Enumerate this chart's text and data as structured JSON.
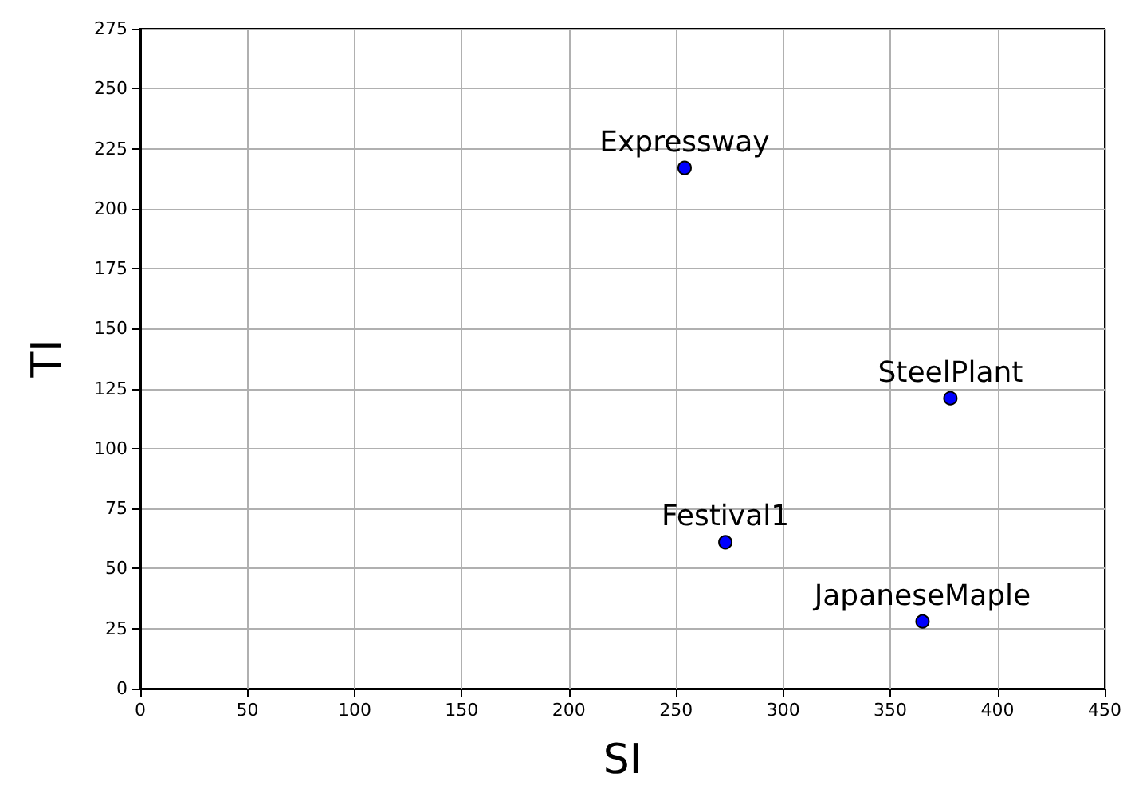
{
  "chart_data": {
    "type": "scatter",
    "xlabel": "SI",
    "ylabel": "TI",
    "x": [
      254,
      378,
      273,
      365
    ],
    "series": [
      {
        "color": "#0000ff",
        "values": [
          217,
          121,
          61,
          28
        ]
      }
    ],
    "annotations": [
      {
        "text": "Expressway",
        "x": 254,
        "y": 217
      },
      {
        "text": "SteelPlant",
        "x": 378,
        "y": 121
      },
      {
        "text": "Festival1",
        "x": 273,
        "y": 61
      },
      {
        "text": "JapaneseMaple",
        "x": 365,
        "y": 28
      }
    ],
    "xlim": [
      0,
      450
    ],
    "xticks": [
      0,
      50,
      100,
      150,
      200,
      250,
      300,
      350,
      400,
      450
    ],
    "ylim": [
      0,
      275
    ],
    "yticks": [
      0,
      25,
      50,
      75,
      100,
      125,
      150,
      175,
      200,
      225,
      250,
      275
    ],
    "grid": true,
    "marker": "circle"
  }
}
